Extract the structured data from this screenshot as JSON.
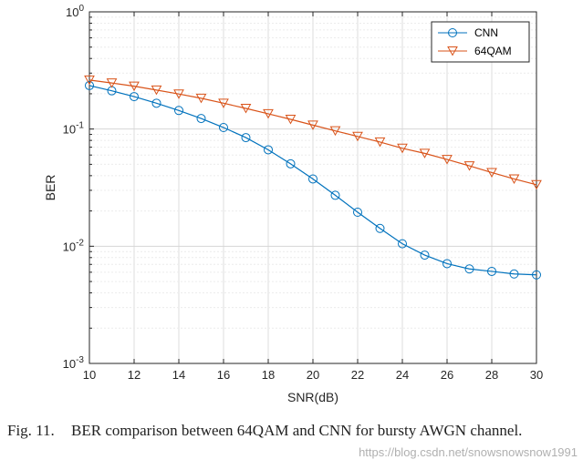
{
  "chart_data": {
    "type": "line",
    "xlabel": "SNR(dB)",
    "ylabel": "BER",
    "yscale": "log",
    "xlim": [
      10,
      30
    ],
    "ylim": [
      0.001,
      1
    ],
    "xticks": [
      "10",
      "12",
      "14",
      "16",
      "18",
      "20",
      "22",
      "24",
      "26",
      "28",
      "30"
    ],
    "yticks": [
      {
        "base": "10",
        "exp": "0"
      },
      {
        "base": "10",
        "exp": "-1"
      },
      {
        "base": "10",
        "exp": "-2"
      },
      {
        "base": "10",
        "exp": "-3"
      }
    ],
    "grid": true,
    "legend_position": "top-right",
    "x": [
      10,
      11,
      12,
      13,
      14,
      15,
      16,
      17,
      18,
      19,
      20,
      21,
      22,
      23,
      24,
      25,
      26,
      27,
      28,
      29,
      30
    ],
    "series": [
      {
        "name": "CNN",
        "color": "#0072BD",
        "marker": "circle",
        "values": [
          0.235,
          0.212,
          0.189,
          0.166,
          0.144,
          0.123,
          0.103,
          0.0845,
          0.0665,
          0.0505,
          0.0375,
          0.0272,
          0.0195,
          0.0142,
          0.0105,
          0.0084,
          0.0071,
          0.0064,
          0.0061,
          0.0058,
          0.0057
        ]
      },
      {
        "name": "64QAM",
        "color": "#D95319",
        "marker": "triangle-down",
        "values": [
          0.262,
          0.247,
          0.232,
          0.215,
          0.199,
          0.183,
          0.166,
          0.15,
          0.135,
          0.121,
          0.108,
          0.0965,
          0.0865,
          0.0775,
          0.0685,
          0.062,
          0.055,
          0.0485,
          0.0425,
          0.0375,
          0.0335
        ]
      }
    ]
  },
  "caption": {
    "label": "Fig. 11.",
    "text": "BER comparison between 64QAM and CNN for bursty AWGN channel."
  },
  "watermark": "https://blog.csdn.net/snowsnowsnow1991"
}
